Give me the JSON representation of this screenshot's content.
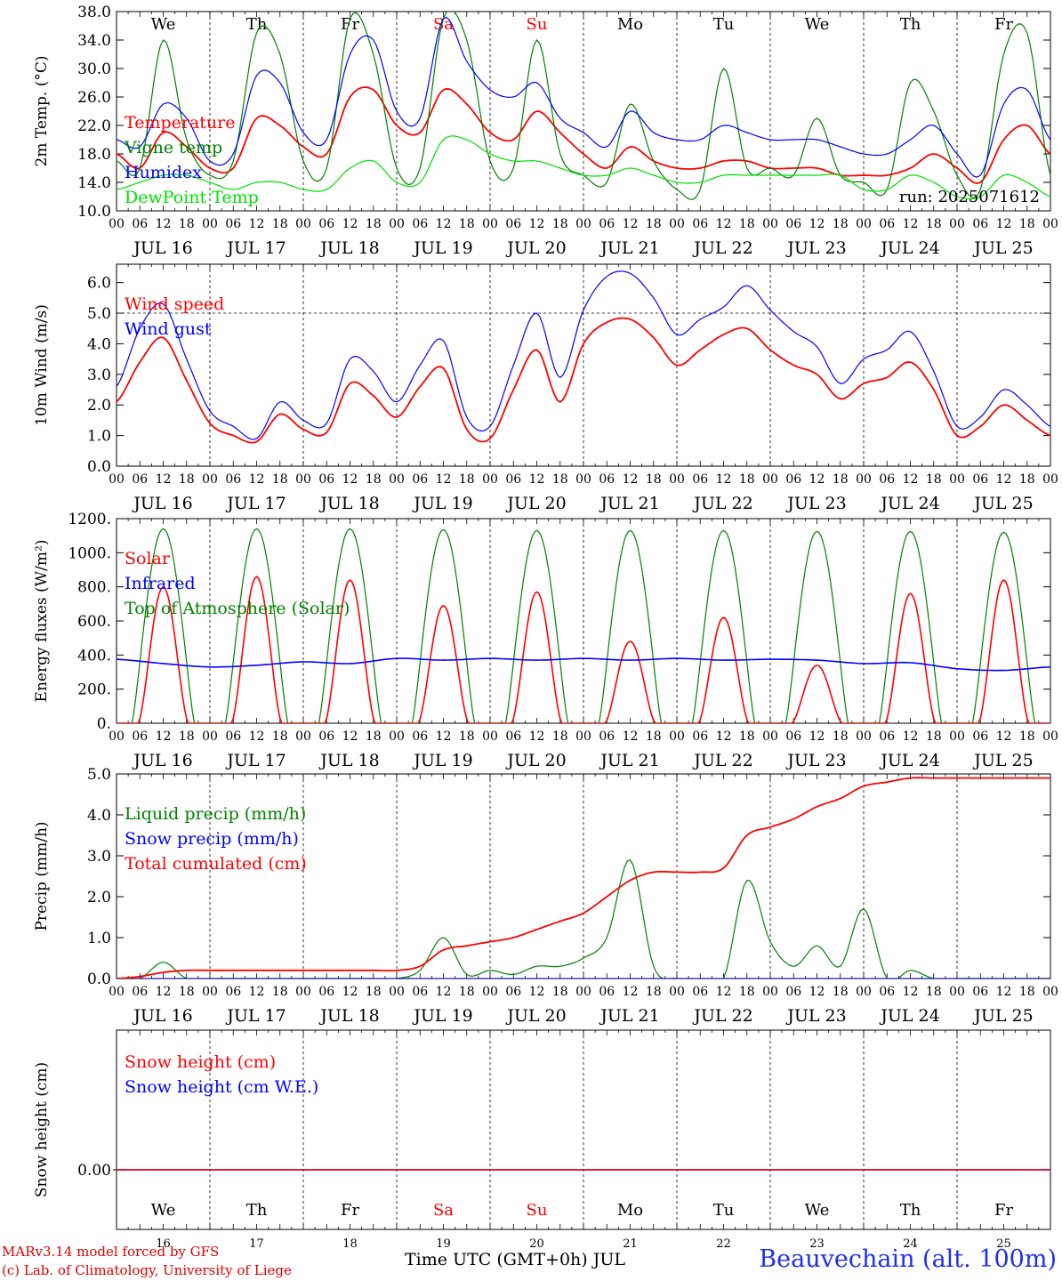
{
  "chart_data": [
    {
      "type": "line",
      "ylabel": "2m Temp. (°C)",
      "ylim": [
        10,
        38
      ],
      "yticks": [
        "10.0",
        "14.0",
        "18.0",
        "22.0",
        "26.0",
        "30.0",
        "34.0",
        "38.0"
      ],
      "grid": "vertical dashed at day boundaries",
      "legend": "top-left",
      "annotation": "run: 2025071612",
      "day_labels": [
        {
          "text": "We",
          "color": "#000000"
        },
        {
          "text": "Th",
          "color": "#000000"
        },
        {
          "text": "Fr",
          "color": "#000000"
        },
        {
          "text": "Sa",
          "color": "#ff0000"
        },
        {
          "text": "Su",
          "color": "#ff0000"
        },
        {
          "text": "Mo",
          "color": "#000000"
        },
        {
          "text": "Tu",
          "color": "#000000"
        },
        {
          "text": "We",
          "color": "#000000"
        },
        {
          "text": "Th",
          "color": "#000000"
        },
        {
          "text": "Fr",
          "color": "#000000"
        }
      ],
      "x_hours": [
        0,
        6,
        12,
        18,
        24,
        30,
        36,
        42,
        48,
        54,
        60,
        66,
        72,
        78,
        84,
        90,
        96,
        102,
        108,
        114,
        120,
        126,
        132,
        138,
        144,
        150,
        156,
        162,
        168,
        174,
        180,
        186,
        192,
        198,
        204,
        210,
        216,
        222,
        228,
        234,
        240
      ],
      "series": [
        {
          "name": "Temperature",
          "color": "#ff0000",
          "values": [
            18,
            16,
            21,
            19,
            16,
            16,
            23,
            22,
            19,
            18,
            26,
            27,
            22,
            21,
            27,
            25,
            21,
            20,
            24,
            21,
            18,
            16,
            19,
            17,
            16,
            16,
            17,
            17,
            16,
            16,
            16,
            15,
            15,
            15,
            16,
            18,
            16,
            14,
            20,
            22,
            18
          ]
        },
        {
          "name": "Vigne temp",
          "color": "#008000",
          "values": [
            17,
            16,
            34,
            20,
            15,
            17,
            35,
            32,
            17,
            16,
            37,
            32,
            16,
            16,
            37,
            34,
            17,
            16,
            34,
            18,
            15,
            14,
            25,
            17,
            13,
            13,
            30,
            16,
            16,
            15,
            23,
            15,
            14,
            13,
            28,
            24,
            15,
            13,
            32,
            35,
            15
          ]
        },
        {
          "name": "Humidex",
          "color": "#0000ff",
          "values": [
            20,
            19,
            25,
            23,
            17,
            18,
            29,
            28,
            21,
            20,
            32,
            34,
            24,
            23,
            37,
            31,
            27,
            26,
            28,
            23,
            21,
            19,
            24,
            21,
            20,
            20,
            22,
            21,
            20,
            20,
            20,
            19,
            18,
            18,
            20,
            22,
            18,
            15,
            25,
            27,
            20
          ]
        },
        {
          "name": "DewPoint Temp",
          "color": "#00e000",
          "values": [
            13,
            14,
            15,
            15,
            14,
            13,
            14,
            14,
            13,
            13,
            16,
            17,
            14,
            14,
            20,
            20,
            18,
            17,
            17,
            16,
            15,
            15,
            16,
            15,
            14,
            14,
            15,
            15,
            15,
            15,
            15,
            15,
            13,
            13,
            15,
            14,
            12,
            12,
            15,
            14,
            12
          ]
        }
      ]
    },
    {
      "type": "line",
      "ylabel": "10m Wind (m/s)",
      "ylim": [
        0,
        6.6
      ],
      "yticks": [
        "0.0",
        "1.0",
        "2.0",
        "3.0",
        "4.0",
        "5.0",
        "6.0"
      ],
      "reference_line": 5.0,
      "legend": "top-left",
      "x_hours": [
        0,
        6,
        12,
        18,
        24,
        30,
        36,
        42,
        48,
        54,
        60,
        66,
        72,
        78,
        84,
        90,
        96,
        102,
        108,
        114,
        120,
        126,
        132,
        138,
        144,
        150,
        156,
        162,
        168,
        174,
        180,
        186,
        192,
        198,
        204,
        210,
        216,
        222,
        228,
        234,
        240
      ],
      "series": [
        {
          "name": "Wind speed",
          "color": "#ff0000",
          "values": [
            2.1,
            3.4,
            4.2,
            2.8,
            1.4,
            1.0,
            0.8,
            1.7,
            1.2,
            1.1,
            2.7,
            2.3,
            1.6,
            2.6,
            3.2,
            1.2,
            0.9,
            2.5,
            3.8,
            2.1,
            4.0,
            4.7,
            4.8,
            4.2,
            3.3,
            3.8,
            4.3,
            4.5,
            3.8,
            3.3,
            3.0,
            2.2,
            2.7,
            2.9,
            3.4,
            2.5,
            1.0,
            1.3,
            2.0,
            1.5,
            1.0
          ]
        },
        {
          "name": "Wind gust",
          "color": "#0000ff",
          "values": [
            2.6,
            4.5,
            5.3,
            3.5,
            1.8,
            1.3,
            0.9,
            2.1,
            1.5,
            1.4,
            3.5,
            3.1,
            2.1,
            3.3,
            4.1,
            1.6,
            1.3,
            3.3,
            5.0,
            2.9,
            5.1,
            6.2,
            6.3,
            5.5,
            4.3,
            4.8,
            5.2,
            5.9,
            5.1,
            4.4,
            3.9,
            2.7,
            3.5,
            3.8,
            4.4,
            3.1,
            1.3,
            1.6,
            2.5,
            2.0,
            1.3
          ]
        }
      ]
    },
    {
      "type": "line",
      "ylabel": "Energy fluxes (W/m²)",
      "ylim": [
        0,
        1200
      ],
      "yticks": [
        "0.",
        "200.",
        "400.",
        "600.",
        "800.",
        "1000.",
        "1200."
      ],
      "legend": "top-left",
      "series": [
        {
          "name": "Solar",
          "color": "#ff0000",
          "daily_peak": [
            800,
            860,
            840,
            690,
            770,
            480,
            620,
            340,
            760,
            840
          ]
        },
        {
          "name": "Infrared",
          "color": "#0000ff",
          "values": [
            375,
            350,
            330,
            340,
            360,
            350,
            380,
            370,
            380,
            370,
            380,
            370,
            380,
            370,
            375,
            370,
            350,
            355,
            320,
            310,
            330
          ]
        },
        {
          "name": "Top of Atmosphere (Solar)",
          "color": "#008000",
          "daily_peak": [
            1140,
            1140,
            1140,
            1135,
            1130,
            1130,
            1130,
            1125,
            1125,
            1120
          ]
        }
      ]
    },
    {
      "type": "line",
      "ylabel": "Precip (mm/h)",
      "ylim": [
        0,
        5
      ],
      "yticks": [
        "0.0",
        "1.0",
        "2.0",
        "3.0",
        "4.0",
        "5.0"
      ],
      "legend": "top-left",
      "x_hours": [
        0,
        6,
        12,
        18,
        24,
        30,
        36,
        42,
        48,
        54,
        60,
        66,
        72,
        78,
        84,
        90,
        96,
        102,
        108,
        114,
        120,
        126,
        132,
        138,
        144,
        150,
        156,
        162,
        168,
        174,
        180,
        186,
        192,
        198,
        204,
        210,
        216,
        222,
        228,
        234,
        240
      ],
      "series": [
        {
          "name": "Liquid precip (mm/h)",
          "color": "#008000",
          "values": [
            0,
            0,
            0.4,
            0,
            0,
            0,
            0,
            0,
            0,
            0,
            0,
            0,
            0,
            0.2,
            1.0,
            0.1,
            0.2,
            0.1,
            0.3,
            0.3,
            0.5,
            1.0,
            2.9,
            0.3,
            0,
            0,
            0,
            2.4,
            0.9,
            0.3,
            0.8,
            0.3,
            1.7,
            0,
            0.2,
            0,
            0,
            0,
            0,
            0,
            0
          ]
        },
        {
          "name": "Snow precip (mm/h)",
          "color": "#0000ff",
          "values": [
            0,
            0,
            0,
            0,
            0,
            0,
            0,
            0,
            0,
            0,
            0,
            0,
            0,
            0,
            0,
            0,
            0,
            0,
            0,
            0,
            0,
            0,
            0,
            0,
            0,
            0,
            0,
            0,
            0,
            0,
            0,
            0,
            0,
            0,
            0,
            0,
            0,
            0,
            0,
            0,
            0
          ]
        },
        {
          "name": "Total cumulated (cm)",
          "color": "#ff0000",
          "values": [
            0,
            0.05,
            0.15,
            0.2,
            0.2,
            0.2,
            0.2,
            0.2,
            0.2,
            0.2,
            0.2,
            0.2,
            0.2,
            0.3,
            0.7,
            0.8,
            0.9,
            1.0,
            1.2,
            1.4,
            1.6,
            2.0,
            2.4,
            2.6,
            2.6,
            2.6,
            2.7,
            3.5,
            3.7,
            3.9,
            4.2,
            4.4,
            4.7,
            4.8,
            4.9,
            4.9,
            4.9,
            4.9,
            4.9,
            4.9,
            4.9
          ]
        }
      ]
    },
    {
      "type": "line",
      "ylabel": "Snow height (cm)",
      "yticks": [
        "0.00"
      ],
      "legend": "top-left",
      "series": [
        {
          "name": "Snow height (cm)",
          "color": "#ff0000",
          "values": [
            0,
            0
          ]
        },
        {
          "name": "Snow height (cm W.E.)",
          "color": "#0000ff",
          "values": [
            0,
            0
          ]
        }
      ],
      "day_labels": [
        {
          "text": "We",
          "color": "#000000"
        },
        {
          "text": "Th",
          "color": "#000000"
        },
        {
          "text": "Fr",
          "color": "#000000"
        },
        {
          "text": "Sa",
          "color": "#ff0000"
        },
        {
          "text": "Su",
          "color": "#ff0000"
        },
        {
          "text": "Mo",
          "color": "#000000"
        },
        {
          "text": "Tu",
          "color": "#000000"
        },
        {
          "text": "We",
          "color": "#000000"
        },
        {
          "text": "Th",
          "color": "#000000"
        },
        {
          "text": "Fr",
          "color": "#000000"
        }
      ],
      "day_numbers": [
        "16",
        "17",
        "18",
        "19",
        "20",
        "21",
        "22",
        "23",
        "24",
        "25"
      ]
    }
  ],
  "x_axis": {
    "hour_ticks": [
      "00",
      "06",
      "12",
      "18"
    ],
    "end_tick": "00",
    "dates": [
      "JUL 16",
      "JUL 17",
      "JUL 18",
      "JUL 19",
      "JUL 20",
      "JUL 21",
      "JUL 22",
      "JUL 23",
      "JUL 24",
      "JUL 25"
    ]
  },
  "footer": {
    "credit_line1": "MARv3.14 model forced by GFS",
    "credit_line2": "(c) Lab. of Climatology, University of Liege",
    "xlabel": "Time UTC (GMT+0h) JUL",
    "station": "Beauvechain (alt. 100m)"
  }
}
